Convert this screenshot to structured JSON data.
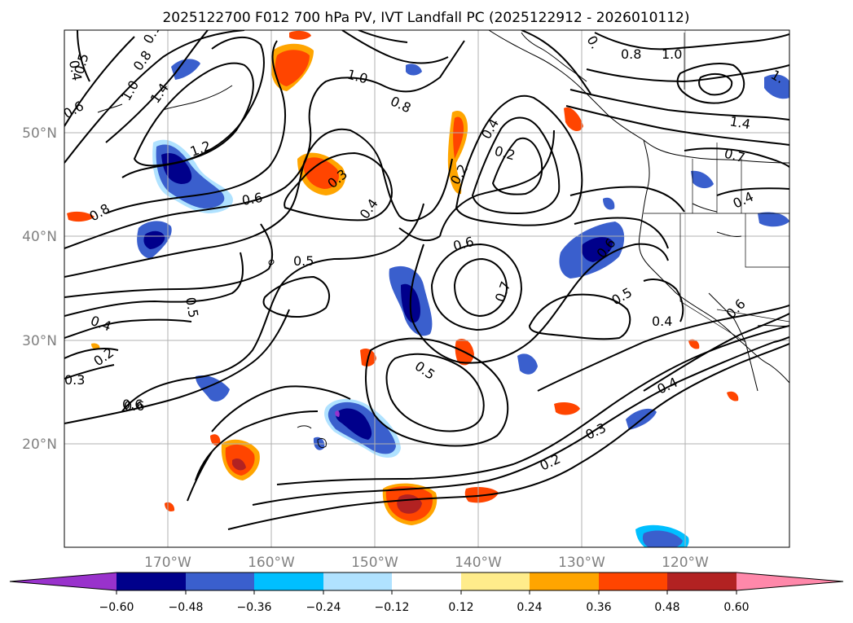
{
  "title": "2025122700 F012 700 hPa PV, IVT Landfall PC (2025122912 - 2026010112)",
  "lat_labels": [
    "50°N",
    "40°N",
    "30°N",
    "20°N"
  ],
  "lon_labels": [
    "170°W",
    "160°W",
    "150°W",
    "140°W",
    "130°W",
    "120°W"
  ],
  "contour_labels": [
    "0.4",
    "0.5",
    "0.6",
    "0.8",
    "1.0",
    "1.4",
    "0.6",
    "1.2",
    "0.6",
    "0.8",
    "1.0",
    "0.8",
    "0.3",
    "0.4",
    "0.2",
    "0.4",
    "0.2",
    "0.8",
    "1.0",
    "1.4",
    "0.7",
    "0.4",
    "1.",
    "0.5",
    "0.6",
    "0.7",
    "0.6",
    "0.5",
    "0.4",
    "0.6",
    "0.4",
    "0.2",
    "0.3",
    "0.6",
    "0.5",
    "0.5",
    "0.4",
    "0.3",
    "0.2",
    "0.",
    "0.1"
  ],
  "colorbar": {
    "ticks": [
      "−0.60",
      "−0.48",
      "−0.36",
      "−0.24",
      "−0.12",
      "0.12",
      "0.24",
      "0.36",
      "0.48",
      "0.60"
    ],
    "colors": [
      "#9932cc",
      "#00008b",
      "#3a5fcd",
      "#00bfff",
      "#b0e2ff",
      "#ffffff",
      "#ffec8b",
      "#ffa500",
      "#ff4500",
      "#b22222",
      "#ff88aa"
    ]
  }
}
